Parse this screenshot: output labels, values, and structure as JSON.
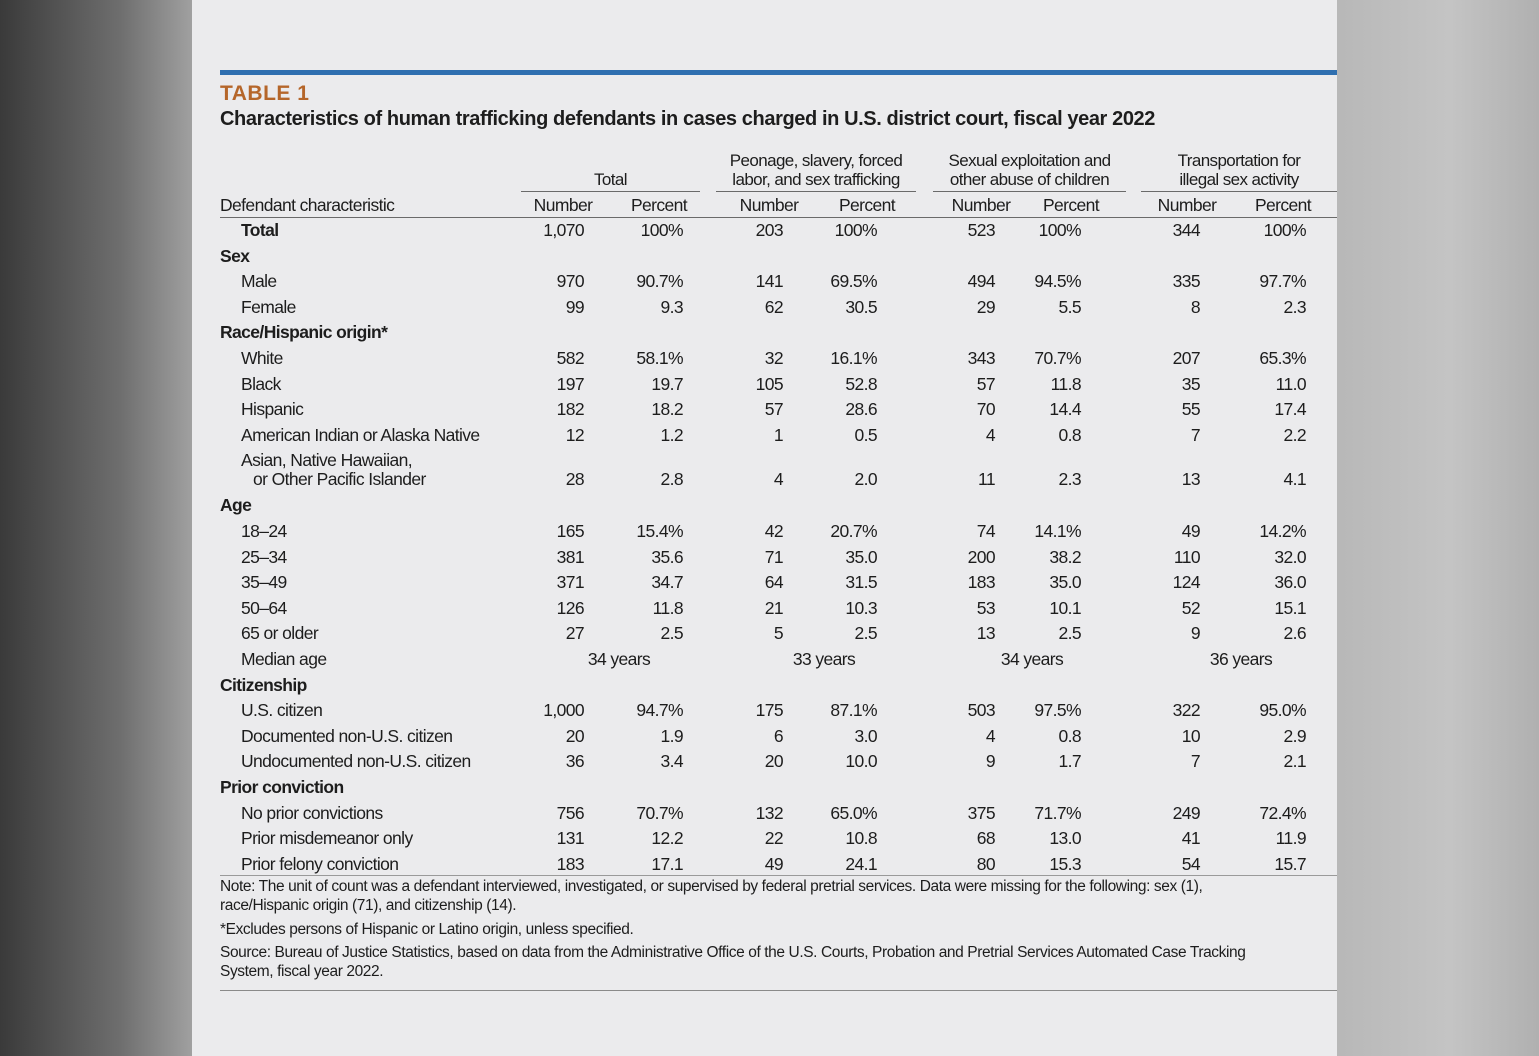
{
  "table_label": "TABLE 1",
  "title": "Characteristics of human trafficking defendants in cases charged in U.S. district court, fiscal year 2022",
  "colors": {
    "accent_rule": "#2f6fb0",
    "table_label": "#b5662a"
  },
  "header": {
    "row_label": "Defendant characteristic",
    "groups": [
      {
        "label": [
          "Total"
        ],
        "sub": [
          "Number",
          "Percent"
        ]
      },
      {
        "label": [
          "Peonage, slavery, forced",
          "labor, and sex trafficking"
        ],
        "sub": [
          "Number",
          "Percent"
        ]
      },
      {
        "label": [
          "Sexual exploitation and",
          "other abuse of children"
        ],
        "sub": [
          "Number",
          "Percent"
        ]
      },
      {
        "label": [
          "Transportation for",
          "illegal sex activity"
        ],
        "sub": [
          "Number",
          "Percent"
        ]
      }
    ]
  },
  "rows": [
    {
      "label": "Total",
      "indent": 1,
      "bold": true,
      "values": [
        "1,070",
        "100%",
        "203",
        "100%",
        "523",
        "100%",
        "344",
        "100%"
      ]
    },
    {
      "label": "Sex",
      "indent": 0,
      "bold": true,
      "values": []
    },
    {
      "label": "Male",
      "indent": 1,
      "values": [
        "970",
        "90.7%",
        "141",
        "69.5%",
        "494",
        "94.5%",
        "335",
        "97.7%"
      ]
    },
    {
      "label": "Female",
      "indent": 1,
      "values": [
        "99",
        "9.3",
        "62",
        "30.5",
        "29",
        "5.5",
        "8",
        "2.3"
      ]
    },
    {
      "label": "Race/Hispanic origin*",
      "indent": 0,
      "bold": true,
      "values": []
    },
    {
      "label": "White",
      "indent": 1,
      "values": [
        "582",
        "58.1%",
        "32",
        "16.1%",
        "343",
        "70.7%",
        "207",
        "65.3%"
      ]
    },
    {
      "label": "Black",
      "indent": 1,
      "values": [
        "197",
        "19.7",
        "105",
        "52.8",
        "57",
        "11.8",
        "35",
        "11.0"
      ]
    },
    {
      "label": "Hispanic",
      "indent": 1,
      "values": [
        "182",
        "18.2",
        "57",
        "28.6",
        "70",
        "14.4",
        "55",
        "17.4"
      ]
    },
    {
      "label": "American Indian or Alaska Native",
      "indent": 1,
      "values": [
        "12",
        "1.2",
        "1",
        "0.5",
        "4",
        "0.8",
        "7",
        "2.2"
      ]
    },
    {
      "label": "Asian, Native Hawaiian,",
      "label2": "or Other Pacific Islander",
      "indent": 1,
      "values": [
        "28",
        "2.8",
        "4",
        "2.0",
        "11",
        "2.3",
        "13",
        "4.1"
      ]
    },
    {
      "label": "Age",
      "indent": 0,
      "bold": true,
      "values": []
    },
    {
      "label": "18–24",
      "indent": 1,
      "values": [
        "165",
        "15.4%",
        "42",
        "20.7%",
        "74",
        "14.1%",
        "49",
        "14.2%"
      ]
    },
    {
      "label": "25–34",
      "indent": 1,
      "values": [
        "381",
        "35.6",
        "71",
        "35.0",
        "200",
        "38.2",
        "110",
        "32.0"
      ]
    },
    {
      "label": "35–49",
      "indent": 1,
      "values": [
        "371",
        "34.7",
        "64",
        "31.5",
        "183",
        "35.0",
        "124",
        "36.0"
      ]
    },
    {
      "label": "50–64",
      "indent": 1,
      "values": [
        "126",
        "11.8",
        "21",
        "10.3",
        "53",
        "10.1",
        "52",
        "15.1"
      ]
    },
    {
      "label": "65 or older",
      "indent": 1,
      "values": [
        "27",
        "2.5",
        "5",
        "2.5",
        "13",
        "2.5",
        "9",
        "2.6"
      ]
    },
    {
      "label": "Median age",
      "indent": 1,
      "spanned": [
        "34 years",
        "33 years",
        "34 years",
        "36 years"
      ]
    },
    {
      "label": "Citizenship",
      "indent": 0,
      "bold": true,
      "values": []
    },
    {
      "label": "U.S. citizen",
      "indent": 1,
      "values": [
        "1,000",
        "94.7%",
        "175",
        "87.1%",
        "503",
        "97.5%",
        "322",
        "95.0%"
      ]
    },
    {
      "label": "Documented non-U.S. citizen",
      "indent": 1,
      "values": [
        "20",
        "1.9",
        "6",
        "3.0",
        "4",
        "0.8",
        "10",
        "2.9"
      ]
    },
    {
      "label": "Undocumented non-U.S. citizen",
      "indent": 1,
      "values": [
        "36",
        "3.4",
        "20",
        "10.0",
        "9",
        "1.7",
        "7",
        "2.1"
      ]
    },
    {
      "label": "Prior conviction",
      "indent": 0,
      "bold": true,
      "values": []
    },
    {
      "label": "No prior convictions",
      "indent": 1,
      "values": [
        "756",
        "70.7%",
        "132",
        "65.0%",
        "375",
        "71.7%",
        "249",
        "72.4%"
      ]
    },
    {
      "label": "Prior misdemeanor only",
      "indent": 1,
      "values": [
        "131",
        "12.2",
        "22",
        "10.8",
        "68",
        "13.0",
        "41",
        "11.9"
      ]
    },
    {
      "label": "Prior felony conviction",
      "indent": 1,
      "values": [
        "183",
        "17.1",
        "49",
        "24.1",
        "80",
        "15.3",
        "54",
        "15.7"
      ]
    }
  ],
  "notes": [
    [
      "Note: The unit of count was a defendant interviewed, investigated, or supervised by federal pretrial services. Data were missing for the following: sex (1),",
      "race/Hispanic origin (71), and citizenship (14)."
    ],
    [
      "*Excludes persons of Hispanic or Latino origin, unless specified."
    ],
    [
      "Source: Bureau of Justice Statistics, based on data from the Administrative Office of the U.S. Courts, Probation and Pretrial Services Automated Case Tracking",
      "System, fiscal year 2022."
    ]
  ]
}
